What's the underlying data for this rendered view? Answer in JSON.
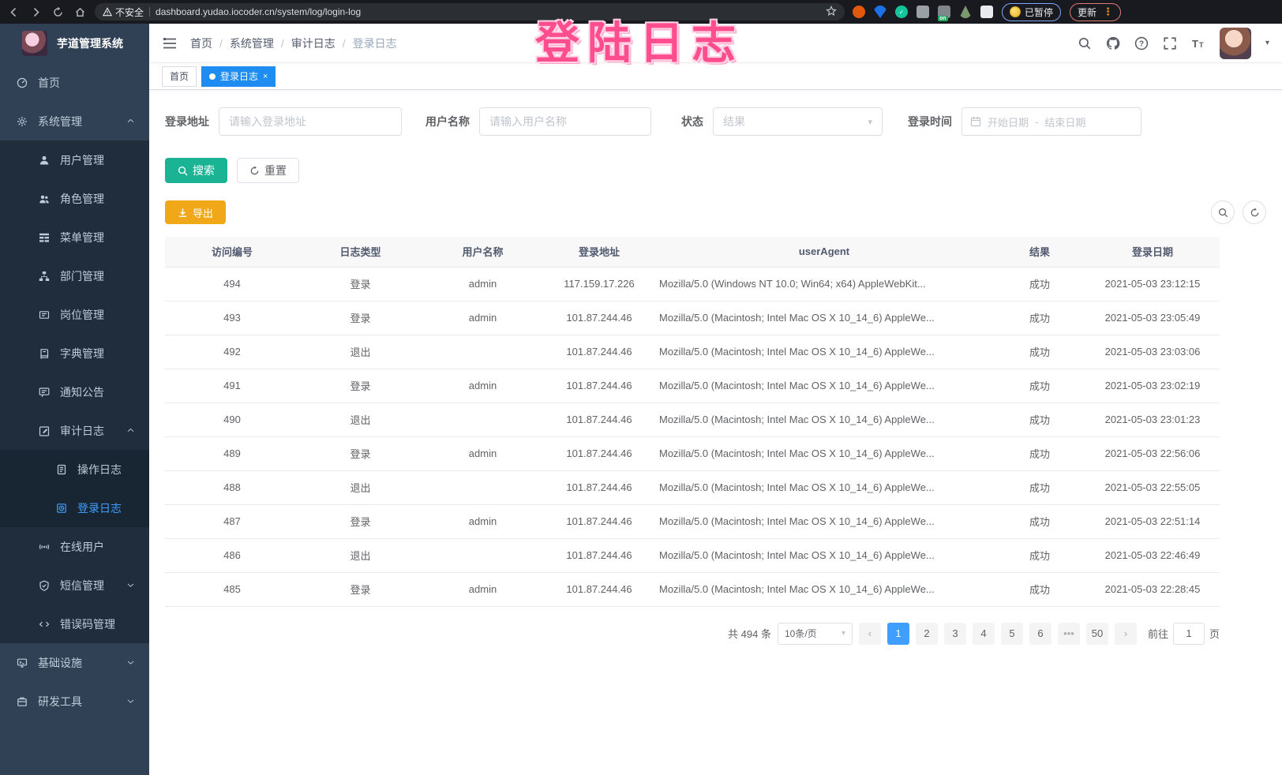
{
  "colors": {
    "accent": "#409eff",
    "search_button": "#1AB394",
    "export_button": "#F0A818",
    "sidebar_bg": "#304156",
    "submenu_bg": "#1f2d3d",
    "active_tag": "#1e8cf0",
    "annotation": "#ff4d8d"
  },
  "browser": {
    "security_label": "不安全",
    "url": "dashboard.yudao.iocoder.cn/system/log/login-log",
    "paused_badge": "已暂停",
    "update_button": "更新"
  },
  "annotation": {
    "text": "登陆日志"
  },
  "sidebar": {
    "title": "芋道管理系统",
    "items": [
      {
        "label": "首页",
        "icon": "dashboard-icon",
        "level": 1
      },
      {
        "label": "系统管理",
        "icon": "gear-icon",
        "level": 1,
        "arrow": "up"
      },
      {
        "label": "用户管理",
        "icon": "user-icon",
        "level": 2
      },
      {
        "label": "角色管理",
        "icon": "peoples-icon",
        "level": 2
      },
      {
        "label": "菜单管理",
        "icon": "tree-table-icon",
        "level": 2
      },
      {
        "label": "部门管理",
        "icon": "tree-icon",
        "level": 2
      },
      {
        "label": "岗位管理",
        "icon": "post-icon",
        "level": 2
      },
      {
        "label": "字典管理",
        "icon": "dict-icon",
        "level": 2
      },
      {
        "label": "通知公告",
        "icon": "message-icon",
        "level": 2
      },
      {
        "label": "审计日志",
        "icon": "log-icon",
        "level": 2,
        "arrow": "up"
      },
      {
        "label": "操作日志",
        "icon": "form-icon",
        "level": 3
      },
      {
        "label": "登录日志",
        "icon": "logininfor-icon",
        "level": 3,
        "active": true
      },
      {
        "label": "在线用户",
        "icon": "online-icon",
        "level": 2
      },
      {
        "label": "短信管理",
        "icon": "sms-icon",
        "level": 2,
        "arrow": "down"
      },
      {
        "label": "错误码管理",
        "icon": "code-icon",
        "level": 2
      },
      {
        "label": "基础设施",
        "icon": "infra-icon",
        "level": 1,
        "arrow": "down"
      },
      {
        "label": "研发工具",
        "icon": "tool-icon",
        "level": 1,
        "arrow": "down"
      }
    ]
  },
  "header": {
    "breadcrumb": [
      "首页",
      "系统管理",
      "审计日志",
      "登录日志"
    ]
  },
  "tags": [
    {
      "label": "首页",
      "active": false
    },
    {
      "label": "登录日志",
      "active": true,
      "close": "×"
    }
  ],
  "filters": {
    "login_address": {
      "label": "登录地址",
      "placeholder": "请输入登录地址"
    },
    "username": {
      "label": "用户名称",
      "placeholder": "请输入用户名称"
    },
    "status": {
      "label": "状态",
      "placeholder": "结果"
    },
    "login_time": {
      "label": "登录时间",
      "start_placeholder": "开始日期",
      "separator": "-",
      "end_placeholder": "结束日期"
    }
  },
  "buttons": {
    "search": "搜索",
    "reset": "重置",
    "export": "导出"
  },
  "table": {
    "columns": [
      "访问编号",
      "日志类型",
      "用户名称",
      "登录地址",
      "userAgent",
      "结果",
      "登录日期"
    ],
    "rows": [
      {
        "id": "494",
        "type": "登录",
        "user": "admin",
        "ip": "117.159.17.226",
        "ua": "Mozilla/5.0 (Windows NT 10.0; Win64; x64) AppleWebKit...",
        "result": "成功",
        "date": "2021-05-03 23:12:15"
      },
      {
        "id": "493",
        "type": "登录",
        "user": "admin",
        "ip": "101.87.244.46",
        "ua": "Mozilla/5.0 (Macintosh; Intel Mac OS X 10_14_6) AppleWe...",
        "result": "成功",
        "date": "2021-05-03 23:05:49"
      },
      {
        "id": "492",
        "type": "退出",
        "user": "",
        "ip": "101.87.244.46",
        "ua": "Mozilla/5.0 (Macintosh; Intel Mac OS X 10_14_6) AppleWe...",
        "result": "成功",
        "date": "2021-05-03 23:03:06"
      },
      {
        "id": "491",
        "type": "登录",
        "user": "admin",
        "ip": "101.87.244.46",
        "ua": "Mozilla/5.0 (Macintosh; Intel Mac OS X 10_14_6) AppleWe...",
        "result": "成功",
        "date": "2021-05-03 23:02:19"
      },
      {
        "id": "490",
        "type": "退出",
        "user": "",
        "ip": "101.87.244.46",
        "ua": "Mozilla/5.0 (Macintosh; Intel Mac OS X 10_14_6) AppleWe...",
        "result": "成功",
        "date": "2021-05-03 23:01:23"
      },
      {
        "id": "489",
        "type": "登录",
        "user": "admin",
        "ip": "101.87.244.46",
        "ua": "Mozilla/5.0 (Macintosh; Intel Mac OS X 10_14_6) AppleWe...",
        "result": "成功",
        "date": "2021-05-03 22:56:06"
      },
      {
        "id": "488",
        "type": "退出",
        "user": "",
        "ip": "101.87.244.46",
        "ua": "Mozilla/5.0 (Macintosh; Intel Mac OS X 10_14_6) AppleWe...",
        "result": "成功",
        "date": "2021-05-03 22:55:05"
      },
      {
        "id": "487",
        "type": "登录",
        "user": "admin",
        "ip": "101.87.244.46",
        "ua": "Mozilla/5.0 (Macintosh; Intel Mac OS X 10_14_6) AppleWe...",
        "result": "成功",
        "date": "2021-05-03 22:51:14"
      },
      {
        "id": "486",
        "type": "退出",
        "user": "",
        "ip": "101.87.244.46",
        "ua": "Mozilla/5.0 (Macintosh; Intel Mac OS X 10_14_6) AppleWe...",
        "result": "成功",
        "date": "2021-05-03 22:46:49"
      },
      {
        "id": "485",
        "type": "登录",
        "user": "admin",
        "ip": "101.87.244.46",
        "ua": "Mozilla/5.0 (Macintosh; Intel Mac OS X 10_14_6) AppleWe...",
        "result": "成功",
        "date": "2021-05-03 22:28:45"
      }
    ]
  },
  "pagination": {
    "total": "共 494 条",
    "page_size": "10条/页",
    "prev": "‹",
    "next": "›",
    "pages": [
      "1",
      "2",
      "3",
      "4",
      "5",
      "6",
      "•••",
      "50"
    ],
    "active_page": "1",
    "goto_label": "前往",
    "goto_value": "1",
    "goto_unit": "页"
  }
}
